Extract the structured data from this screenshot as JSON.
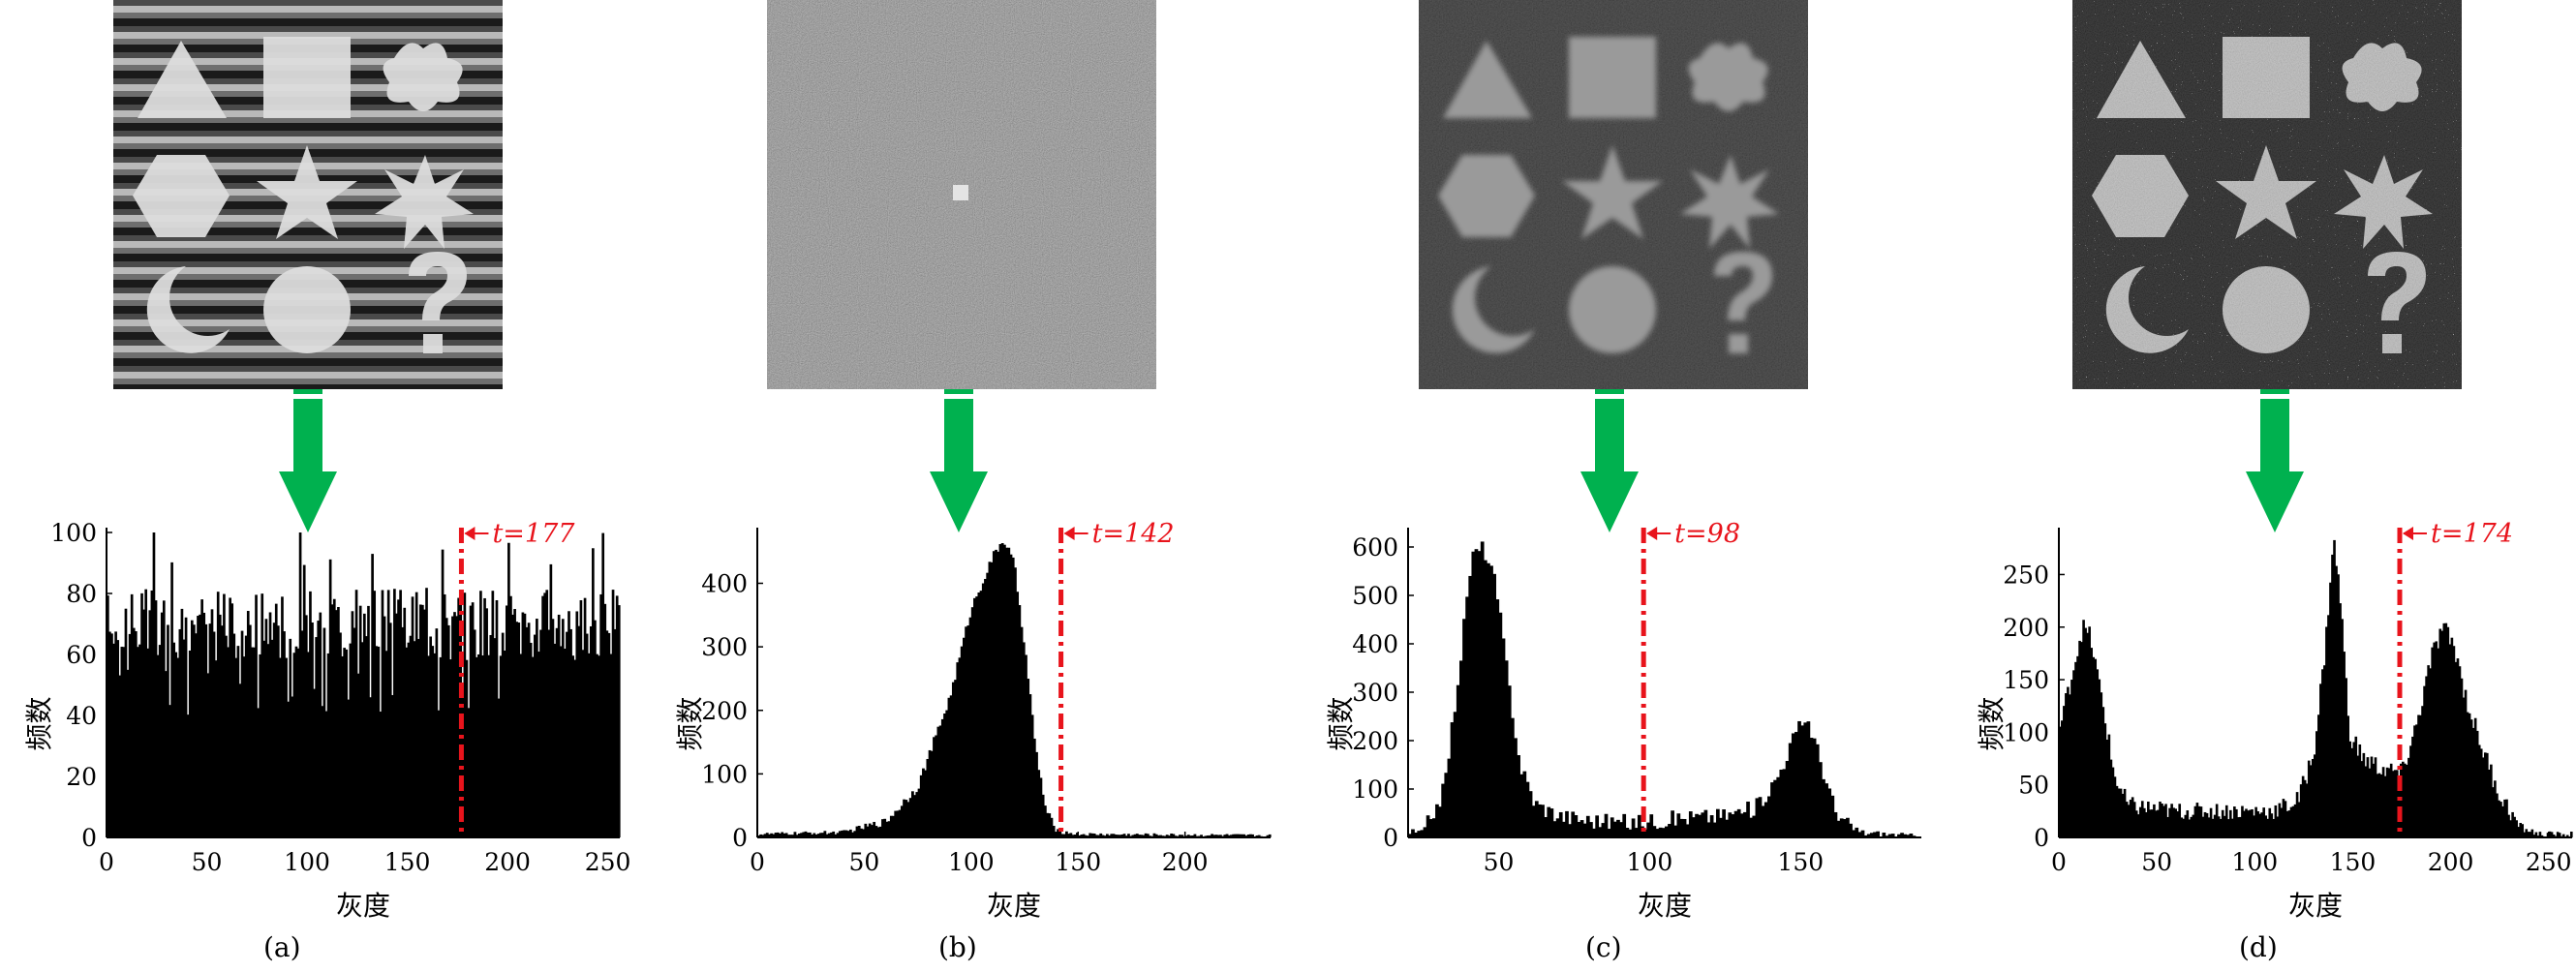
{
  "chart_data": [
    {
      "panel": "a",
      "type": "histogram",
      "caption": "(a)",
      "xlabel": "灰度",
      "ylabel": "频数",
      "xlim": [
        0,
        256
      ],
      "ylim": [
        0,
        100
      ],
      "xticks": [
        0,
        50,
        100,
        150,
        200,
        250
      ],
      "yticks": [
        0,
        20,
        40,
        60,
        80,
        100
      ],
      "threshold": {
        "value": 177,
        "label": "t=177",
        "color": "#e8141c"
      },
      "shape": "uniform",
      "anchors": [
        [
          0,
          70
        ],
        [
          256,
          70
        ]
      ],
      "noise": 12,
      "image": "striped-shapes"
    },
    {
      "panel": "b",
      "type": "histogram",
      "caption": "(b)",
      "xlabel": "灰度",
      "ylabel": "频数",
      "xlim": [
        0,
        240
      ],
      "ylim": [
        0,
        480
      ],
      "xticks": [
        0,
        50,
        100,
        150,
        200
      ],
      "yticks": [
        0,
        100,
        200,
        300,
        400
      ],
      "threshold": {
        "value": 142,
        "label": "t=142",
        "color": "#e8141c"
      },
      "shape": "peaks",
      "anchors": [
        [
          0,
          5
        ],
        [
          40,
          8
        ],
        [
          60,
          25
        ],
        [
          75,
          80
        ],
        [
          90,
          220
        ],
        [
          100,
          360
        ],
        [
          110,
          440
        ],
        [
          115,
          470
        ],
        [
          120,
          430
        ],
        [
          125,
          300
        ],
        [
          130,
          140
        ],
        [
          135,
          40
        ],
        [
          140,
          10
        ],
        [
          150,
          5
        ],
        [
          240,
          3
        ]
      ],
      "noise": 8,
      "image": "noise-square"
    },
    {
      "panel": "c",
      "type": "histogram",
      "caption": "(c)",
      "xlabel": "灰度",
      "ylabel": "频数",
      "xlim": [
        20,
        190
      ],
      "ylim": [
        0,
        630
      ],
      "xticks": [
        50,
        100,
        150
      ],
      "yticks": [
        0,
        100,
        200,
        300,
        400,
        500,
        600
      ],
      "threshold": {
        "value": 98,
        "label": "t=98",
        "color": "#e8141c"
      },
      "shape": "peaks",
      "anchors": [
        [
          25,
          10
        ],
        [
          32,
          100
        ],
        [
          37,
          350
        ],
        [
          41,
          580
        ],
        [
          45,
          600
        ],
        [
          49,
          520
        ],
        [
          53,
          330
        ],
        [
          57,
          150
        ],
        [
          62,
          70
        ],
        [
          70,
          45
        ],
        [
          80,
          35
        ],
        [
          95,
          30
        ],
        [
          110,
          40
        ],
        [
          125,
          45
        ],
        [
          135,
          60
        ],
        [
          142,
          120
        ],
        [
          148,
          210
        ],
        [
          152,
          250
        ],
        [
          156,
          170
        ],
        [
          162,
          40
        ],
        [
          170,
          10
        ],
        [
          190,
          2
        ]
      ],
      "noise": 18,
      "image": "blurred-shapes"
    },
    {
      "panel": "d",
      "type": "histogram",
      "caption": "(d)",
      "xlabel": "灰度",
      "ylabel": "频数",
      "xlim": [
        0,
        262
      ],
      "ylim": [
        0,
        290
      ],
      "xticks": [
        0,
        50,
        100,
        150,
        200,
        250
      ],
      "yticks": [
        0,
        50,
        100,
        150,
        200,
        250
      ],
      "threshold": {
        "value": 174,
        "label": "t=174",
        "color": "#e8141c"
      },
      "shape": "peaks",
      "anchors": [
        [
          0,
          100
        ],
        [
          6,
          150
        ],
        [
          12,
          200
        ],
        [
          16,
          190
        ],
        [
          22,
          130
        ],
        [
          28,
          60
        ],
        [
          35,
          30
        ],
        [
          60,
          25
        ],
        [
          110,
          25
        ],
        [
          122,
          35
        ],
        [
          130,
          80
        ],
        [
          136,
          180
        ],
        [
          140,
          285
        ],
        [
          144,
          220
        ],
        [
          148,
          100
        ],
        [
          155,
          75
        ],
        [
          165,
          65
        ],
        [
          175,
          60
        ],
        [
          183,
          110
        ],
        [
          190,
          170
        ],
        [
          196,
          200
        ],
        [
          202,
          180
        ],
        [
          208,
          130
        ],
        [
          215,
          90
        ],
        [
          225,
          40
        ],
        [
          235,
          10
        ],
        [
          245,
          3
        ]
      ],
      "noise": 10,
      "image": "salt-pepper-shapes"
    }
  ],
  "arrow_color": "#00b14f"
}
